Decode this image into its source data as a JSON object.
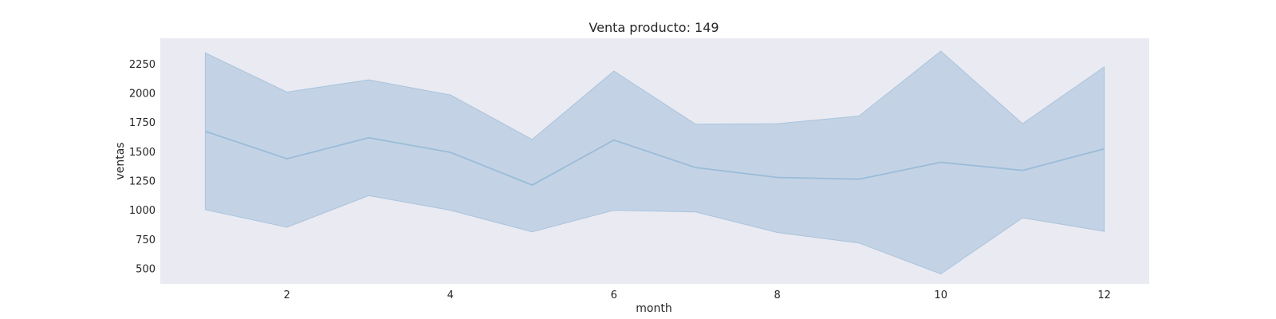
{
  "chart_data": {
    "type": "area",
    "title": "Venta producto: 149",
    "xlabel": "month",
    "ylabel": "ventas",
    "x": [
      1,
      2,
      3,
      4,
      5,
      6,
      7,
      8,
      9,
      10,
      11,
      12
    ],
    "series": [
      {
        "values": [
          1675,
          1440,
          1620,
          1495,
          1215,
          1600,
          1365,
          1280,
          1265,
          1410,
          1340,
          1525
        ]
      }
    ],
    "band": {
      "lower": [
        1005,
        855,
        1125,
        1000,
        815,
        1000,
        985,
        810,
        720,
        455,
        935,
        820
      ],
      "upper": [
        2345,
        2010,
        2115,
        1985,
        1605,
        2190,
        1735,
        1740,
        1805,
        2360,
        1740,
        2225
      ]
    },
    "xticks": [
      2,
      4,
      6,
      8,
      10,
      12
    ],
    "yticks": [
      500,
      750,
      1000,
      1250,
      1500,
      1750,
      2000,
      2250
    ],
    "xlim": [
      0.45,
      12.55
    ],
    "ylim": [
      370,
      2470
    ],
    "grid": false,
    "colors": {
      "plot_background": "#eaeaf2",
      "band_fill": "#a9c3dc",
      "line": "#9bbcd8"
    }
  }
}
